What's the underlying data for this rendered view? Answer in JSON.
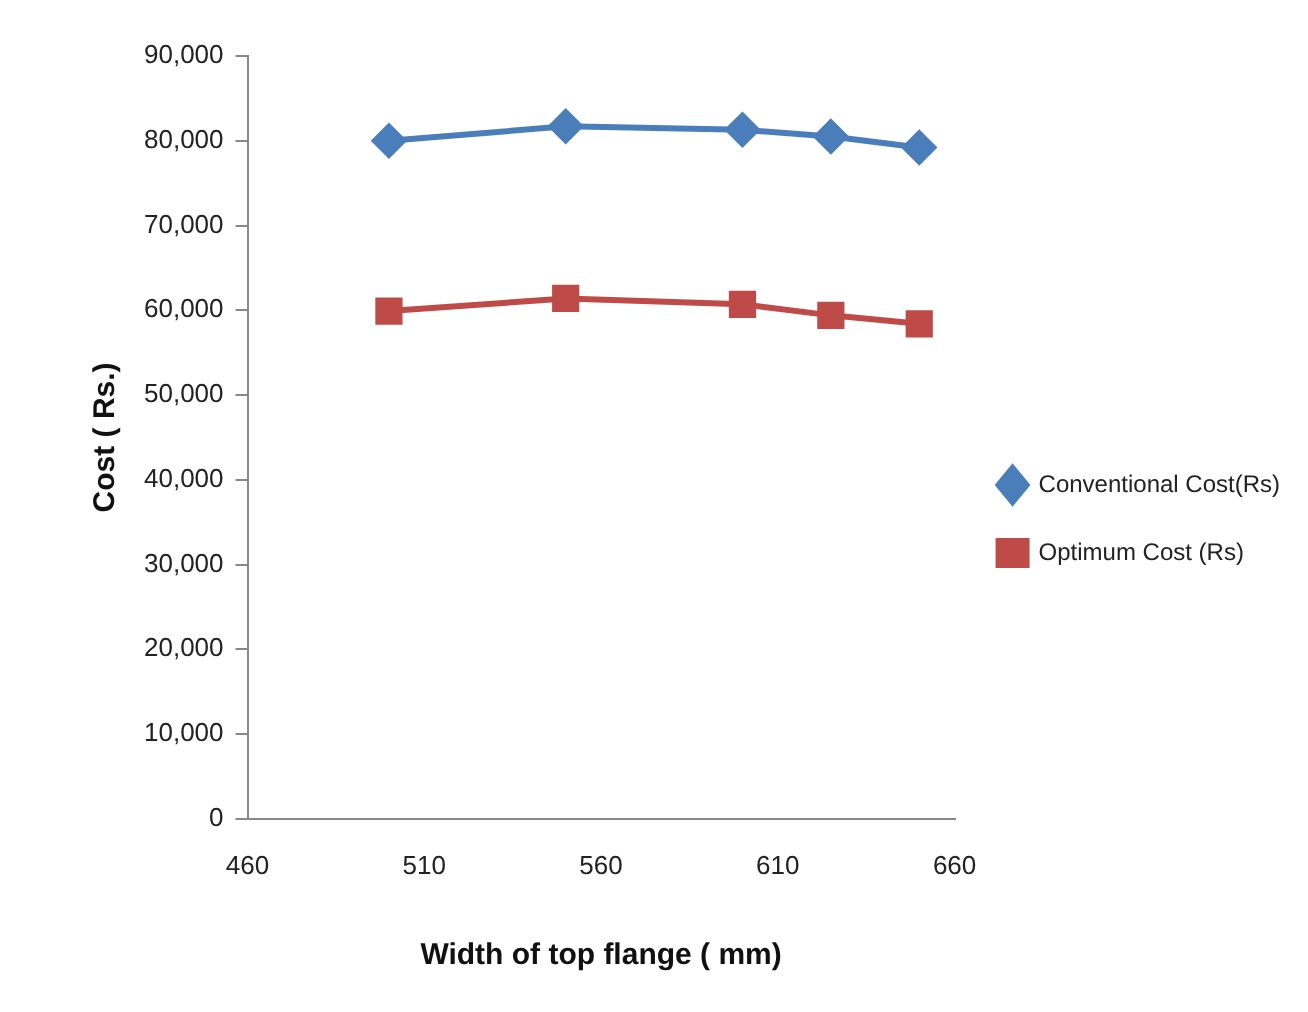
{
  "chart_data": {
    "type": "line",
    "xlabel": "Width of top flange ( mm)",
    "ylabel": "Cost ( Rs.)",
    "x": [
      500,
      550,
      600,
      625,
      650
    ],
    "series": [
      {
        "name": "Conventional Cost(Rs)",
        "color": "#4a7ebb",
        "marker": "diamond",
        "values": [
          80000,
          81700,
          81300,
          80500,
          79200
        ]
      },
      {
        "name": "Optimum Cost (Rs)",
        "color": "#be4b48",
        "marker": "square",
        "values": [
          59900,
          61400,
          60700,
          59400,
          58400
        ]
      }
    ],
    "xlim": [
      460,
      660
    ],
    "xticks": [
      460,
      510,
      560,
      610,
      660
    ],
    "ylim": [
      0,
      90000
    ],
    "yticks": [
      0,
      {
        "value": 10000,
        "label": "10,000"
      },
      {
        "value": 20000,
        "label": "20,000"
      },
      {
        "value": 30000,
        "label": "30,000"
      },
      {
        "value": 40000,
        "label": "40,000"
      },
      {
        "value": 50000,
        "label": "50,000"
      },
      {
        "value": 60000,
        "label": "60,000"
      },
      {
        "value": 70000,
        "label": "70,000"
      },
      {
        "value": 80000,
        "label": "80,000"
      },
      {
        "value": 90000,
        "label": "90,000"
      }
    ],
    "grid": false,
    "legend": "right"
  }
}
